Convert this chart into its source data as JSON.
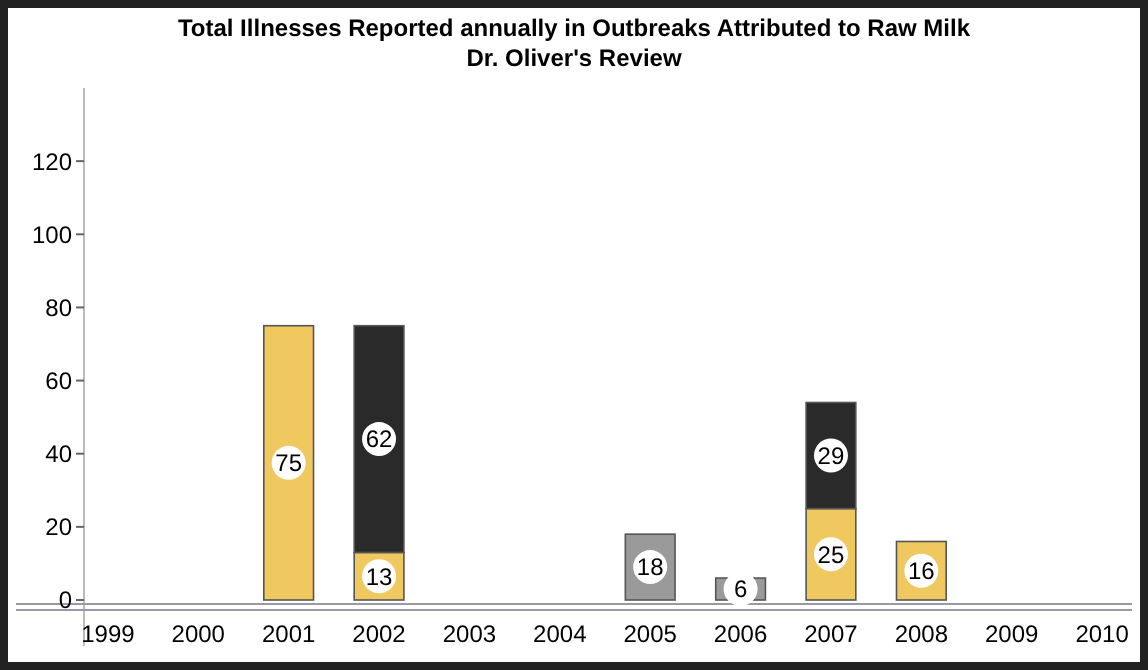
{
  "chart_data": {
    "type": "bar",
    "title": "Total Illnesses Reported annually in Outbreaks Attributed to Raw Milk",
    "subtitle": "Dr. Oliver's Review",
    "categories": [
      "1999",
      "2000",
      "2001",
      "2002",
      "2003",
      "2004",
      "2005",
      "2006",
      "2007",
      "2008",
      "2009",
      "2010"
    ],
    "stacked": true,
    "series": [
      {
        "color": "#f0c860",
        "values": [
          null,
          null,
          75,
          13,
          null,
          null,
          null,
          null,
          25,
          16,
          null,
          null
        ]
      },
      {
        "color": "#2a2a2a",
        "values": [
          null,
          null,
          null,
          62,
          null,
          null,
          null,
          null,
          29,
          null,
          null,
          null
        ]
      },
      {
        "color": "#9a9a9a",
        "values": [
          null,
          null,
          null,
          null,
          null,
          null,
          18,
          6,
          null,
          null,
          null,
          null
        ]
      }
    ],
    "ylim": [
      0,
      140
    ],
    "yticks": [
      0,
      20,
      40,
      60,
      80,
      100,
      120
    ],
    "data_labels": true,
    "grid": false
  }
}
